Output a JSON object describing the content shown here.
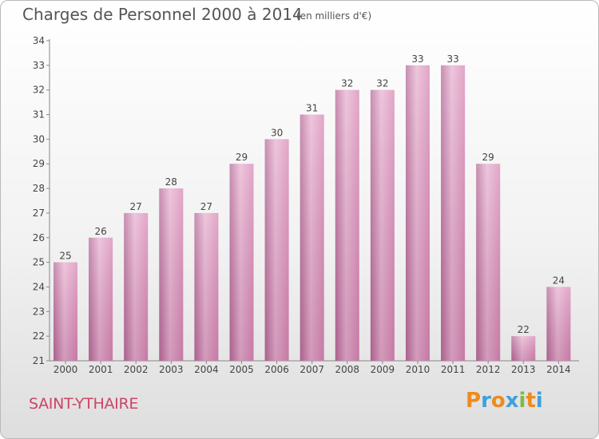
{
  "chart_data": {
    "type": "bar",
    "title": "Charges de Personnel 2000 à 2014",
    "subtitle": "(en milliers d'€)",
    "categories": [
      "2000",
      "2001",
      "2002",
      "2003",
      "2004",
      "2005",
      "2006",
      "2007",
      "2008",
      "2009",
      "2010",
      "2011",
      "2012",
      "2013",
      "2014"
    ],
    "values": [
      25,
      26,
      27,
      28,
      27,
      29,
      30,
      31,
      32,
      32,
      33,
      33,
      29,
      22,
      24
    ],
    "ylim": [
      21,
      34
    ],
    "yticks": [
      21,
      22,
      23,
      24,
      25,
      26,
      27,
      28,
      29,
      30,
      31,
      32,
      33,
      34
    ],
    "grid": false,
    "bar_color": "#d889b5",
    "bar_color_light": "#e8b3d1",
    "bar_color_dark": "#b56a97"
  },
  "footer": {
    "city": "SAINT-YTHAIRE",
    "logo": "Proxiti",
    "logo_letters": [
      {
        "char": "P",
        "color": "#f08a1c"
      },
      {
        "char": "r",
        "color": "#3fa0d8"
      },
      {
        "char": "o",
        "color": "#f08a1c"
      },
      {
        "char": "x",
        "color": "#3fa0d8"
      },
      {
        "char": "i",
        "color": "#7dbb3c"
      },
      {
        "char": "t",
        "color": "#f08a1c"
      },
      {
        "char": "i",
        "color": "#3fa0d8"
      }
    ]
  }
}
